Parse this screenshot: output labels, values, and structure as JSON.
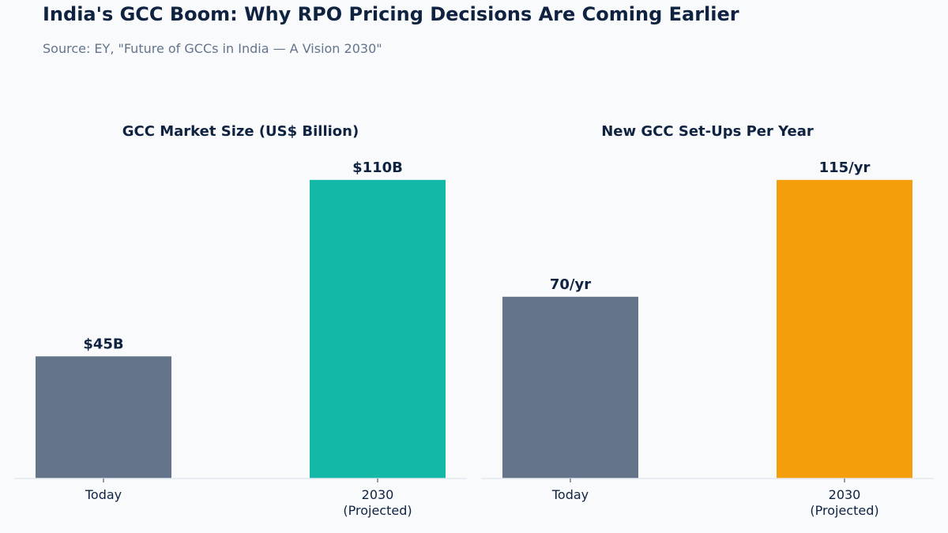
{
  "title": "India's GCC Boom: Why RPO Pricing Decisions Are Coming Earlier",
  "subtitle": "Source: EY, \"Future of GCCs in India — A Vision 2030\"",
  "chart_data": [
    {
      "type": "bar",
      "title": "GCC Market Size (US$ Billion)",
      "categories": [
        "Today",
        "2030\n(Projected)"
      ],
      "values": [
        45,
        110
      ],
      "data_labels": [
        "$45B",
        "$110B"
      ],
      "colors": [
        "#64748b",
        "#14b8a6"
      ],
      "ylim": [
        0,
        121
      ],
      "xlabel": "",
      "ylabel": "",
      "grid": false
    },
    {
      "type": "bar",
      "title": "New GCC Set-Ups Per Year",
      "categories": [
        "Today",
        "2030\n(Projected)"
      ],
      "values": [
        70,
        115
      ],
      "data_labels": [
        "70/yr",
        "115/yr"
      ],
      "colors": [
        "#64748b",
        "#f59e0b"
      ],
      "ylim": [
        0,
        126.5
      ],
      "xlabel": "",
      "ylabel": "",
      "grid": false
    }
  ]
}
